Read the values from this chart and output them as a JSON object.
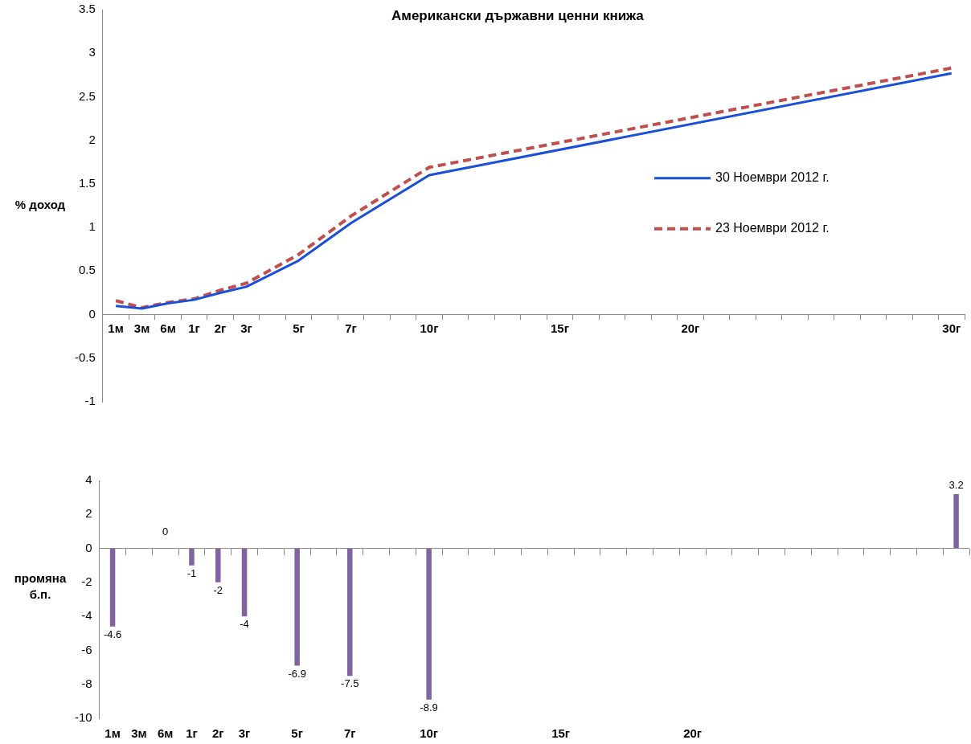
{
  "chart_data": [
    {
      "type": "line",
      "title": "Американски държавни ценни книжа",
      "ylabel": "% доход",
      "categories": [
        "1м",
        "3м",
        "6м",
        "1г",
        "2г",
        "3г",
        null,
        "5г",
        null,
        "7г",
        null,
        null,
        "10г",
        null,
        null,
        null,
        null,
        "15г",
        null,
        null,
        null,
        null,
        "20г",
        null,
        null,
        null,
        null,
        null,
        null,
        null,
        null,
        null,
        "30г"
      ],
      "series": [
        {
          "name": "30 Ноември 2012 г.",
          "color": "#1a4fd8",
          "line_style": "solid",
          "values": [
            0.1,
            0.07,
            0.13,
            0.17,
            0.25,
            0.32,
            null,
            0.62,
            null,
            1.05,
            null,
            null,
            1.6,
            null,
            null,
            null,
            null,
            null,
            null,
            null,
            null,
            null,
            null,
            null,
            null,
            null,
            null,
            null,
            null,
            null,
            null,
            null,
            2.77
          ]
        },
        {
          "name": "23 Ноември 2012 г.",
          "color": "#c0504d",
          "line_style": "dashed",
          "values": [
            0.16,
            0.08,
            0.14,
            0.18,
            0.28,
            0.36,
            null,
            0.69,
            null,
            1.13,
            null,
            null,
            1.69,
            null,
            null,
            null,
            null,
            null,
            null,
            null,
            null,
            null,
            null,
            null,
            null,
            null,
            null,
            null,
            null,
            null,
            null,
            null,
            2.83
          ]
        }
      ],
      "ylim": [
        -1,
        3.5
      ],
      "yticks": [
        -1,
        -0.5,
        0,
        0.5,
        1,
        1.5,
        2,
        2.5,
        3,
        3.5
      ],
      "grid": false,
      "legend": "right",
      "marker": "none"
    },
    {
      "type": "bar",
      "ylabel": "промяна б.п.",
      "categories": [
        "1м",
        "3м",
        "6м",
        "1г",
        "2г",
        "3г",
        null,
        "5г",
        null,
        "7г",
        null,
        null,
        "10г",
        null,
        null,
        null,
        null,
        "15г",
        null,
        null,
        null,
        null,
        "20г",
        null,
        null,
        null,
        null,
        null,
        null,
        null,
        null,
        null,
        null
      ],
      "values": [
        -4.6,
        null,
        0,
        -1,
        -2,
        -4,
        null,
        -6.9,
        null,
        -7.5,
        null,
        null,
        -8.9,
        null,
        null,
        null,
        null,
        null,
        null,
        null,
        null,
        null,
        null,
        null,
        null,
        null,
        null,
        null,
        null,
        null,
        null,
        null,
        3.2
      ],
      "value_labels": [
        "-4.6",
        null,
        "0",
        "-1",
        "-2",
        "-4",
        null,
        "-6.9",
        null,
        "-7.5",
        null,
        null,
        "-8.9",
        null,
        null,
        null,
        null,
        null,
        null,
        null,
        null,
        null,
        null,
        null,
        null,
        null,
        null,
        null,
        null,
        null,
        null,
        null,
        "3.2"
      ],
      "color": "#8064a2",
      "ref_lines": [
        {
          "axis": "y",
          "value": 0,
          "color": "#888888"
        }
      ],
      "ylim": [
        -10,
        4
      ],
      "yticks": [
        -10,
        -8,
        -6,
        -4,
        -2,
        0,
        2,
        4
      ],
      "grid": false,
      "legend": false
    }
  ]
}
